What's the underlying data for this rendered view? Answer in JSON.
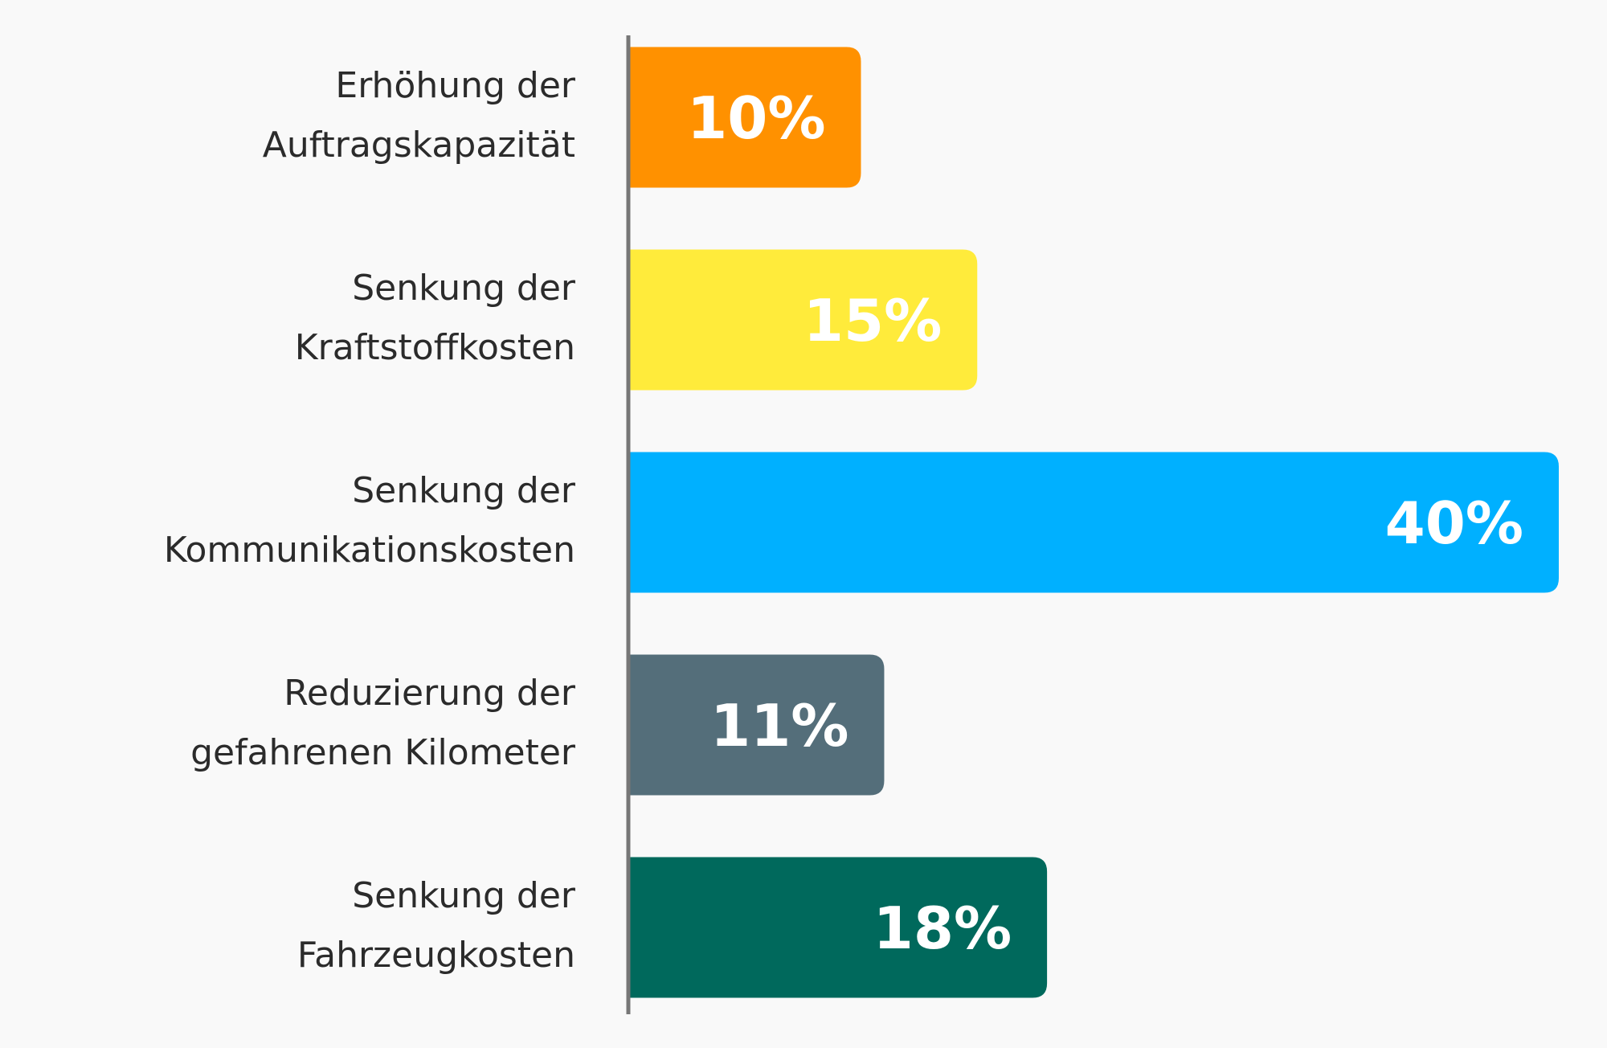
{
  "chart_data": {
    "type": "bar",
    "orientation": "horizontal",
    "title": "",
    "xlabel": "",
    "ylabel": "",
    "xlim": [
      0,
      40
    ],
    "grid": false,
    "legend": "none",
    "categories": [
      [
        "Erhöhung der",
        "Auftragskapazität"
      ],
      [
        "Senkung der",
        "Kraftstoffkosten"
      ],
      [
        "Senkung der",
        "Kommunikationskosten"
      ],
      [
        "Reduzierung der",
        "gefahrenen Kilometer"
      ],
      [
        "Senkung der",
        "Fahrzeugkosten"
      ]
    ],
    "values": [
      10,
      15,
      40,
      11,
      18
    ],
    "value_labels": [
      "10%",
      "15%",
      "40%",
      "11%",
      "18%"
    ],
    "colors": [
      "#FF9100",
      "#FFEB3B",
      "#00B0FF",
      "#546E7A",
      "#00695C"
    ],
    "axis_color": "#777777",
    "label_color": "#2b2b2b",
    "value_label_color": "#ffffff",
    "background": "#f9f9f9"
  }
}
